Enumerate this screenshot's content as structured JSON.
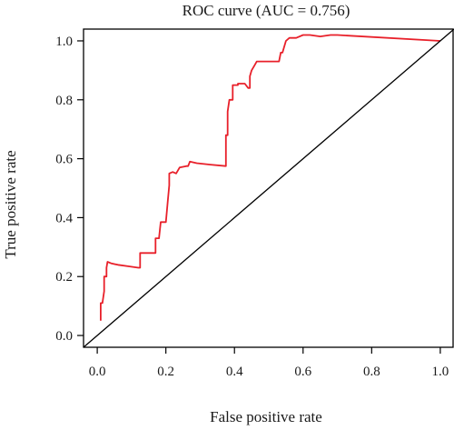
{
  "chart_data": {
    "type": "line",
    "title": "ROC curve (AUC = 0.756)",
    "xlabel": "False positive rate",
    "ylabel": "True positive rate",
    "xlim": [
      -0.04,
      1.04
    ],
    "ylim": [
      -0.04,
      1.04
    ],
    "xticks": [
      "0.0",
      "0.2",
      "0.4",
      "0.6",
      "0.8",
      "1.0"
    ],
    "yticks": [
      "0.0",
      "0.2",
      "0.4",
      "0.6",
      "0.8",
      "1.0"
    ],
    "grid": false,
    "legend": "none",
    "colors": {
      "roc": "#e8202a",
      "reference": "#000000",
      "frame": "#000000"
    },
    "series": [
      {
        "role": "roc",
        "x": [
          0.01,
          0.01,
          0.015,
          0.02,
          0.02,
          0.027,
          0.027,
          0.03,
          0.04,
          0.06,
          0.09,
          0.12,
          0.125,
          0.125,
          0.16,
          0.17,
          0.17,
          0.18,
          0.185,
          0.185,
          0.2,
          0.205,
          0.21,
          0.21,
          0.22,
          0.23,
          0.235,
          0.24,
          0.26,
          0.265,
          0.27,
          0.29,
          0.33,
          0.375,
          0.375,
          0.38,
          0.38,
          0.385,
          0.39,
          0.395,
          0.395,
          0.41,
          0.41,
          0.42,
          0.43,
          0.44,
          0.445,
          0.445,
          0.45,
          0.46,
          0.465,
          0.47,
          0.49,
          0.51,
          0.53,
          0.535,
          0.54,
          0.55,
          0.56,
          0.58,
          0.6,
          0.62,
          0.65,
          0.68,
          0.7,
          1.0
        ],
        "y": [
          0.05,
          0.11,
          0.11,
          0.15,
          0.2,
          0.2,
          0.23,
          0.25,
          0.245,
          0.24,
          0.235,
          0.23,
          0.23,
          0.28,
          0.28,
          0.28,
          0.33,
          0.33,
          0.385,
          0.385,
          0.385,
          0.45,
          0.51,
          0.55,
          0.555,
          0.55,
          0.56,
          0.57,
          0.575,
          0.575,
          0.59,
          0.585,
          0.58,
          0.575,
          0.68,
          0.68,
          0.76,
          0.8,
          0.8,
          0.8,
          0.85,
          0.85,
          0.855,
          0.855,
          0.855,
          0.84,
          0.84,
          0.88,
          0.9,
          0.92,
          0.93,
          0.93,
          0.93,
          0.93,
          0.93,
          0.96,
          0.96,
          1.0,
          1.01,
          1.01,
          1.02,
          1.02,
          1.015,
          1.02,
          1.02,
          1.0
        ]
      },
      {
        "role": "reference",
        "x": [
          -0.04,
          1.04
        ],
        "y": [
          -0.04,
          1.04
        ]
      }
    ]
  }
}
